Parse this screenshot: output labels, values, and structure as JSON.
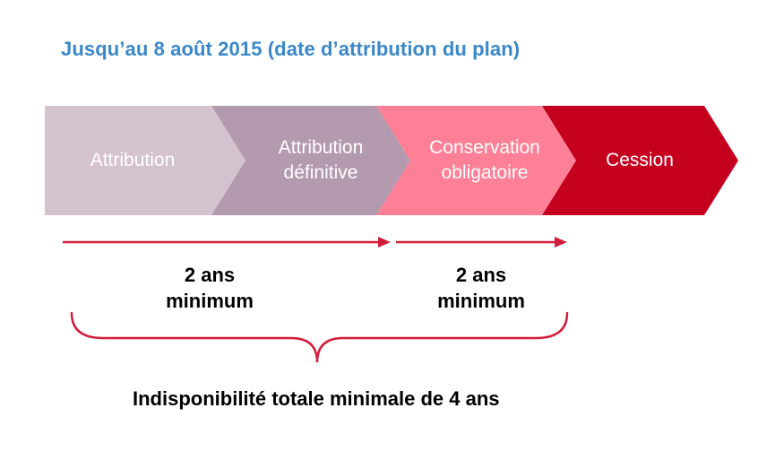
{
  "title": "Jusqu’au 8 août 2015 (date d’attribution du plan)",
  "steps": [
    {
      "line1": "Attribution",
      "line2": "",
      "color": "#d5c2cf"
    },
    {
      "line1": "Attribution",
      "line2": "définitive",
      "color": "#b49aae"
    },
    {
      "line1": "Conservation",
      "line2": "obligatoire",
      "color": "#fd8096"
    },
    {
      "line1": "Cession",
      "line2": "",
      "color": "#c5001f"
    }
  ],
  "durations": [
    {
      "line1": "2 ans",
      "line2": "minimum"
    },
    {
      "line1": "2 ans",
      "line2": "minimum"
    }
  ],
  "accent_color": "#d21d3a",
  "total": "Indisponibilité totale minimale de 4 ans"
}
